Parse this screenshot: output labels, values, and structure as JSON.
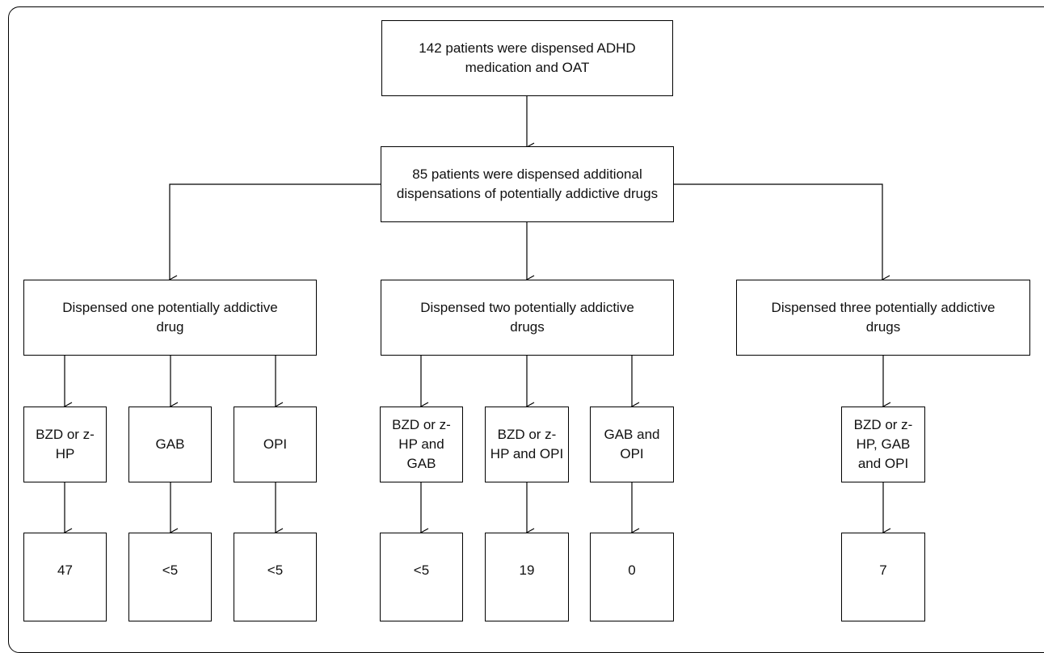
{
  "nodes": {
    "root": "142 patients were dispensed ADHD medication and OAT",
    "additional": "85 patients were dispensed additional dispensations of potentially addictive drugs",
    "one_drug": "Dispensed one potentially addictive drug",
    "two_drugs": "Dispensed two potentially addictive drugs",
    "three_drugs": "Dispensed three potentially addictive drugs",
    "bzd": "BZD or z-HP",
    "gab": "GAB",
    "opi": "OPI",
    "bzd_gab": "BZD or z-HP and GAB",
    "bzd_opi": "BZD or z-HP and OPI",
    "gab_opi": "GAB and OPI",
    "bzd_gab_opi": "BZD or z-HP, GAB and OPI"
  },
  "counts": {
    "bzd": "47",
    "gab": "<5",
    "opi": "<5",
    "bzd_gab": "<5",
    "bzd_opi": "19",
    "gab_opi": "0",
    "bzd_gab_opi": "7"
  }
}
